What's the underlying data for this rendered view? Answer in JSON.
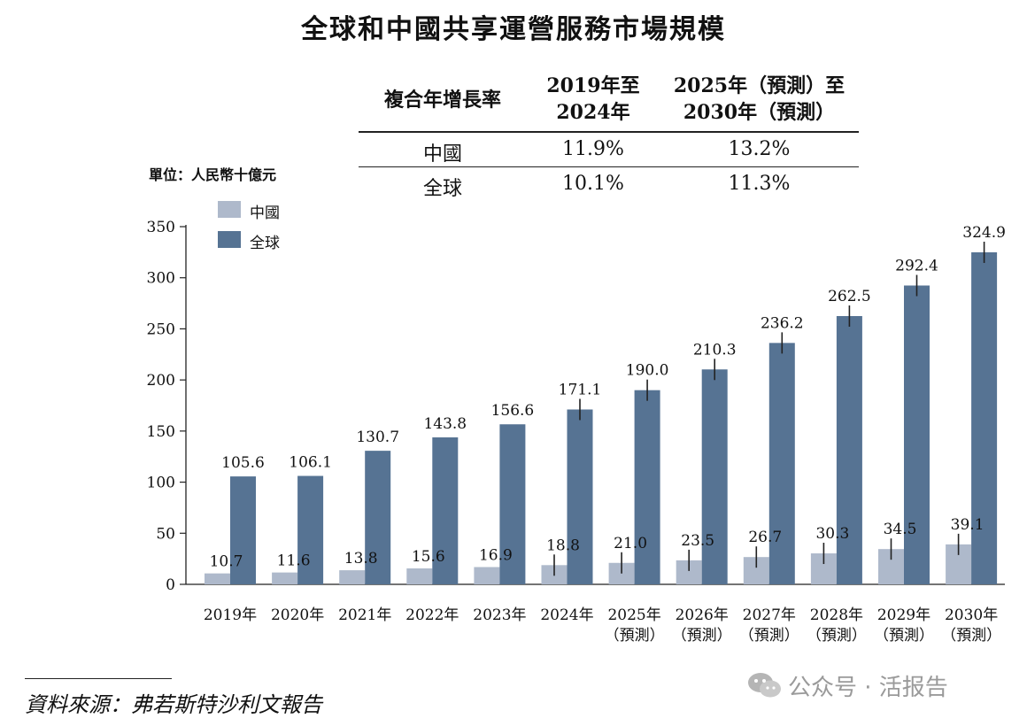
{
  "title": "全球和中國共享運營服務市場規模",
  "cagr_table": {
    "header": {
      "label": "複合年增長率",
      "col1_line1": "2019年至",
      "col1_line2": "2024年",
      "col2_line1": "2025年（預測）至",
      "col2_line2": "2030年（預測）"
    },
    "rows": [
      {
        "region": "中國",
        "v1": "11.9%",
        "v2": "13.2%"
      },
      {
        "region": "全球",
        "v1": "10.1%",
        "v2": "11.3%"
      }
    ]
  },
  "unit_label": "單位：人民幣十億元",
  "source": "資料來源：弗若斯特沙利文報告",
  "watermark": "公众号 · 活报告",
  "colors": {
    "china": "#aeb9cb",
    "global": "#567393",
    "axis": "#222222"
  },
  "chart_data": {
    "type": "bar",
    "title": "全球和中國共享運營服務市場規模",
    "ylabel": "單位：人民幣十億元",
    "ylim": [
      0,
      350
    ],
    "yticks": [
      0,
      50,
      100,
      150,
      200,
      250,
      300,
      350
    ],
    "legend_position": "top-left",
    "categories": [
      {
        "line1": "2019年",
        "line2": ""
      },
      {
        "line1": "2020年",
        "line2": ""
      },
      {
        "line1": "2021年",
        "line2": ""
      },
      {
        "line1": "2022年",
        "line2": ""
      },
      {
        "line1": "2023年",
        "line2": ""
      },
      {
        "line1": "2024年",
        "line2": ""
      },
      {
        "line1": "2025年",
        "line2": "（預測）"
      },
      {
        "line1": "2026年",
        "line2": "（預測）"
      },
      {
        "line1": "2027年",
        "line2": "（預測）"
      },
      {
        "line1": "2028年",
        "line2": "（預測）"
      },
      {
        "line1": "2029年",
        "line2": "（預測）"
      },
      {
        "line1": "2030年",
        "line2": "（預測）"
      }
    ],
    "series": [
      {
        "name": "中國",
        "values": [
          10.7,
          11.6,
          13.8,
          15.6,
          16.9,
          18.8,
          21.0,
          23.5,
          26.7,
          30.3,
          34.5,
          39.1
        ],
        "labels": [
          "10.7",
          "11.6",
          "13.8",
          "15.6",
          "16.9",
          "18.8",
          "21.0",
          "23.5",
          "26.7",
          "30.3",
          "34.5",
          "39.1"
        ]
      },
      {
        "name": "全球",
        "values": [
          105.6,
          106.1,
          130.7,
          143.8,
          156.6,
          171.1,
          190.0,
          210.3,
          236.2,
          262.5,
          292.4,
          324.9
        ],
        "labels": [
          "105.6",
          "106.1",
          "130.7",
          "143.8",
          "156.6",
          "171.1",
          "190.0",
          "210.3",
          "236.2",
          "262.5",
          "292.4",
          "324.9"
        ]
      }
    ],
    "error_marks": {
      "china_from_index": 5,
      "global_from_index": 5
    }
  }
}
